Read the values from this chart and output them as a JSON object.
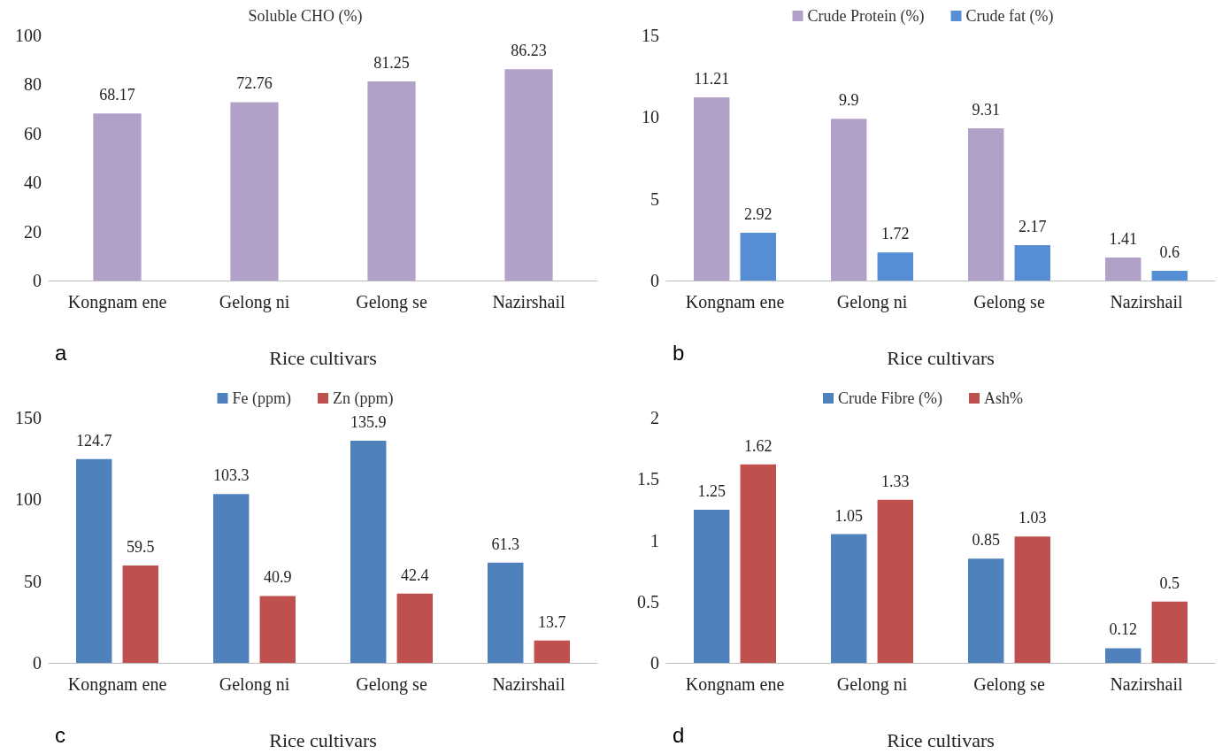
{
  "chart_data": [
    {
      "type": "bar",
      "title": "Soluble CHO (%)",
      "xlabel": "Rice cultivars",
      "annotations": [
        "a"
      ],
      "categories": [
        "Kongnam ene",
        "Gelong ni",
        "Gelong se",
        "Nazirshail"
      ],
      "series": [
        {
          "color": "#b1a0c7",
          "values": [
            68.17,
            72.76,
            81.25,
            86.23
          ]
        }
      ],
      "ylim": [
        0,
        100
      ],
      "yticks": [
        0,
        20,
        40,
        60,
        80,
        100
      ],
      "grid": false,
      "data_labels": true
    },
    {
      "type": "bar",
      "xlabel": "Rice cultivars",
      "annotations": [
        "b"
      ],
      "categories": [
        "Kongnam ene",
        "Gelong ni",
        "Gelong se",
        "Nazirshail"
      ],
      "series": [
        {
          "name": "Crude Protein (%)",
          "color": "#b1a0c7",
          "values": [
            11.21,
            9.9,
            9.31,
            1.41
          ]
        },
        {
          "name": "Crude fat (%)",
          "color": "#558ed5",
          "values": [
            2.92,
            1.72,
            2.17,
            0.6
          ]
        }
      ],
      "ylim": [
        0,
        15
      ],
      "yticks": [
        0,
        5,
        10,
        15
      ],
      "grid": false,
      "legend": "top",
      "data_labels": true
    },
    {
      "type": "bar",
      "xlabel": "Rice cultivars",
      "annotations": [
        "c"
      ],
      "categories": [
        "Kongnam ene",
        "Gelong ni",
        "Gelong se",
        "Nazirshail"
      ],
      "series": [
        {
          "name": "Fe (ppm)",
          "color": "#4f81bd",
          "values": [
            124.7,
            103.3,
            135.9,
            61.3
          ]
        },
        {
          "name": "Zn (ppm)",
          "color": "#c0504d",
          "values": [
            59.5,
            40.9,
            42.4,
            13.7
          ]
        }
      ],
      "ylim": [
        0,
        150
      ],
      "yticks": [
        0,
        50,
        100,
        150
      ],
      "grid": false,
      "legend": "top",
      "data_labels": true
    },
    {
      "type": "bar",
      "xlabel": "Rice cultivars",
      "annotations": [
        "d"
      ],
      "categories": [
        "Kongnam ene",
        "Gelong ni",
        "Gelong se",
        "Nazirshail"
      ],
      "series": [
        {
          "name": "Crude Fibre (%)",
          "color": "#4f81bd",
          "values": [
            1.25,
            1.05,
            0.85,
            0.12
          ]
        },
        {
          "name": "Ash%",
          "color": "#c0504d",
          "values": [
            1.62,
            1.33,
            1.03,
            0.5
          ]
        }
      ],
      "ylim": [
        0,
        2
      ],
      "yticks": [
        0,
        0.5,
        1,
        1.5,
        2
      ],
      "grid": false,
      "legend": "top",
      "data_labels": true
    }
  ]
}
